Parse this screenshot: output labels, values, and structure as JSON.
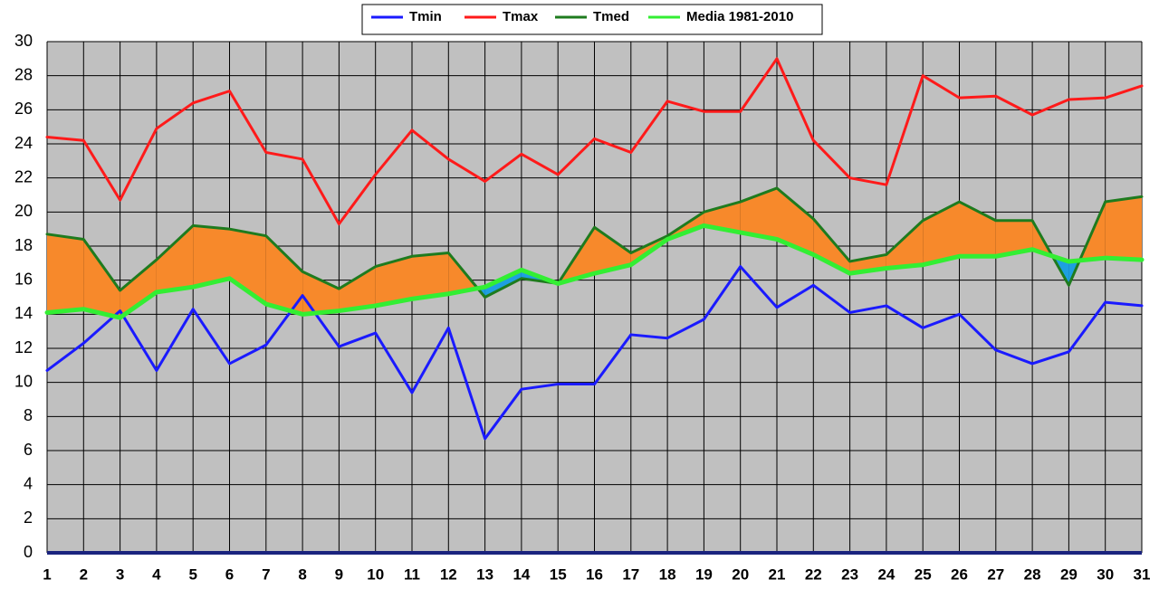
{
  "chart_data": {
    "type": "line",
    "x": [
      1,
      2,
      3,
      4,
      5,
      6,
      7,
      8,
      9,
      10,
      11,
      12,
      13,
      14,
      15,
      16,
      17,
      18,
      19,
      20,
      21,
      22,
      23,
      24,
      25,
      26,
      27,
      28,
      29,
      30,
      31
    ],
    "xlim": [
      1,
      31
    ],
    "ylim": [
      0,
      30
    ],
    "yticks": [
      0,
      2,
      4,
      6,
      8,
      10,
      12,
      14,
      16,
      18,
      20,
      22,
      24,
      26,
      28,
      30
    ],
    "grid": true,
    "legend": "top",
    "fill_above_color": "#f7892b",
    "fill_below_color": "#1e9fe0",
    "series": [
      {
        "name": "Tmin",
        "color": "#1a1aff",
        "values": [
          10.7,
          12.3,
          14.2,
          10.7,
          14.3,
          11.1,
          12.2,
          15.1,
          12.1,
          12.9,
          9.4,
          13.2,
          6.7,
          9.6,
          9.9,
          9.9,
          12.8,
          12.6,
          13.7,
          16.8,
          14.4,
          15.7,
          14.1,
          14.5,
          13.2,
          14.0,
          11.9,
          11.1,
          11.8,
          14.7,
          14.5
        ]
      },
      {
        "name": "Tmax",
        "color": "#ff1a1a",
        "values": [
          24.4,
          24.2,
          20.7,
          24.9,
          26.4,
          27.1,
          23.5,
          23.1,
          19.3,
          22.2,
          24.8,
          23.1,
          21.8,
          23.4,
          22.2,
          24.3,
          23.5,
          26.5,
          25.9,
          25.9,
          29.0,
          24.2,
          22.0,
          21.6,
          28.0,
          26.7,
          26.8,
          25.7,
          26.6,
          26.7,
          27.4
        ]
      },
      {
        "name": "Tmed",
        "color": "#1e7b1e",
        "values": [
          18.7,
          18.4,
          15.4,
          17.2,
          19.2,
          19.0,
          18.6,
          16.5,
          15.5,
          16.8,
          17.4,
          17.6,
          15.0,
          16.1,
          15.8,
          19.1,
          17.6,
          18.6,
          20.0,
          20.6,
          21.4,
          19.6,
          17.1,
          17.5,
          19.5,
          20.6,
          19.5,
          19.5,
          15.7,
          20.6,
          20.9
        ]
      },
      {
        "name": "Media 1981-2010",
        "color": "#33ee33",
        "values": [
          14.1,
          14.3,
          13.8,
          15.3,
          15.6,
          16.1,
          14.6,
          14.0,
          14.2,
          14.5,
          14.9,
          15.2,
          15.6,
          16.6,
          15.8,
          16.4,
          16.9,
          18.4,
          19.2,
          18.8,
          18.4,
          17.5,
          16.4,
          16.7,
          16.9,
          17.4,
          17.4,
          17.8,
          17.1,
          17.3,
          17.2
        ]
      }
    ]
  }
}
